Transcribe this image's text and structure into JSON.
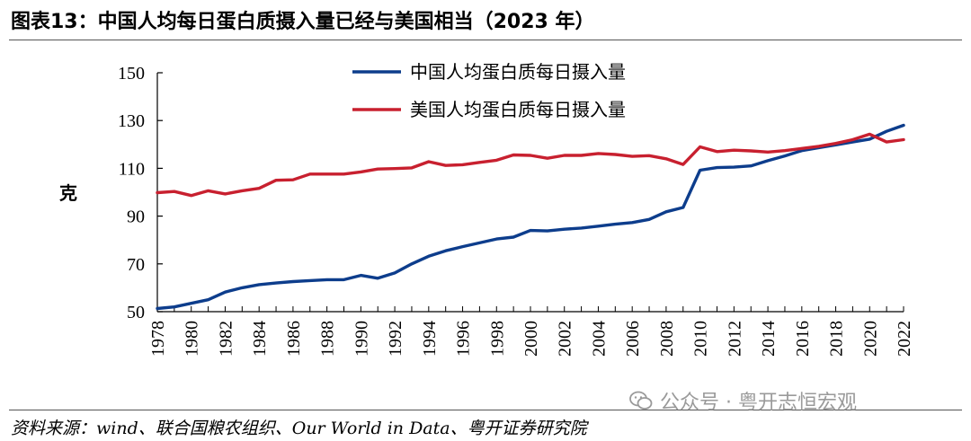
{
  "header": {
    "title": "图表13：中国人均每日蛋白质摄入量已经与美国相当（2023 年）"
  },
  "footer": {
    "source": "资料来源：wind、联合国粮农组织、Our World in Data、粤开证券研究院",
    "watermark": "公众号 · 粤开志恒宏观"
  },
  "chart_data": {
    "type": "line",
    "title": "",
    "xlabel": "",
    "ylabel": "克",
    "ylim": [
      50,
      150
    ],
    "yticks": [
      50,
      70,
      90,
      110,
      130,
      150
    ],
    "xlim": [
      1978,
      2022
    ],
    "xticks": [
      1978,
      1980,
      1982,
      1984,
      1986,
      1988,
      1990,
      1992,
      1994,
      1996,
      1998,
      2000,
      2002,
      2004,
      2006,
      2008,
      2010,
      2012,
      2014,
      2016,
      2018,
      2020,
      2022
    ],
    "grid": false,
    "legend_position": "top",
    "x": [
      1978,
      1979,
      1980,
      1981,
      1982,
      1983,
      1984,
      1985,
      1986,
      1987,
      1988,
      1989,
      1990,
      1991,
      1992,
      1993,
      1994,
      1995,
      1996,
      1997,
      1998,
      1999,
      2000,
      2001,
      2002,
      2003,
      2004,
      2005,
      2006,
      2007,
      2008,
      2009,
      2010,
      2011,
      2012,
      2013,
      2014,
      2015,
      2016,
      2017,
      2018,
      2019,
      2020,
      2021,
      2022
    ],
    "series": [
      {
        "name": "中国人均蛋白质每日摄入量",
        "color": "#0d3d8c",
        "values": [
          51.3,
          52.0,
          53.5,
          55.0,
          58.2,
          60.0,
          61.3,
          62.0,
          62.6,
          63.0,
          63.4,
          63.4,
          65.2,
          64.0,
          66.2,
          70.0,
          73.2,
          75.5,
          77.2,
          78.8,
          80.4,
          81.2,
          84.0,
          83.8,
          84.5,
          85.0,
          85.8,
          86.6,
          87.3,
          88.6,
          91.8,
          93.6,
          109.2,
          110.3,
          110.5,
          111.0,
          113.2,
          115.2,
          117.4,
          118.6,
          119.8,
          121.0,
          122.2,
          125.5,
          128.0
        ]
      },
      {
        "name": "美国人均蛋白质每日摄入量",
        "color": "#c8202f",
        "values": [
          99.8,
          100.3,
          98.6,
          100.6,
          99.3,
          100.6,
          101.6,
          105.0,
          105.2,
          107.6,
          107.6,
          107.6,
          108.5,
          109.7,
          109.9,
          110.2,
          112.8,
          111.2,
          111.5,
          112.5,
          113.4,
          115.6,
          115.4,
          114.2,
          115.4,
          115.4,
          116.2,
          115.8,
          115.0,
          115.3,
          114.0,
          111.6,
          119.0,
          117.0,
          117.6,
          117.3,
          116.8,
          117.4,
          118.3,
          119.2,
          120.4,
          122.0,
          124.3,
          121.0,
          122.0
        ]
      }
    ]
  }
}
